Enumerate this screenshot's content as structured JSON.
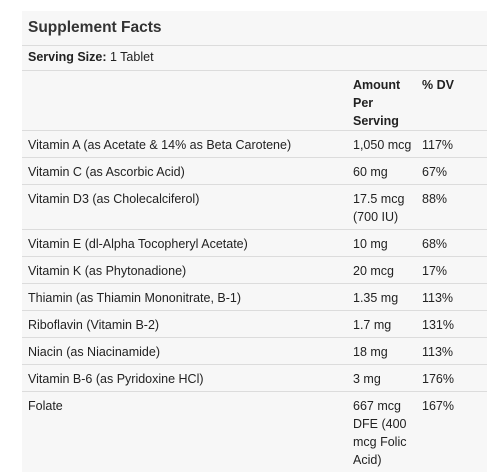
{
  "title": "Supplement Facts",
  "serving": {
    "label": "Serving Size:",
    "value": "1 Tablet"
  },
  "columns": {
    "amount": "Amount Per Serving",
    "dv": "% DV"
  },
  "rows": [
    {
      "name": "Vitamin A (as Acetate & 14% as Beta Carotene)",
      "amount": "1,050 mcg",
      "dv": "117%"
    },
    {
      "name": "Vitamin C (as Ascorbic Acid)",
      "amount": "60 mg",
      "dv": "67%"
    },
    {
      "name": "Vitamin D3 (as Cholecalciferol)",
      "amount": "17.5 mcg (700 IU)",
      "dv": "88%"
    },
    {
      "name": "Vitamin E (dl-Alpha Tocopheryl Acetate)",
      "amount": "10 mg",
      "dv": "68%"
    },
    {
      "name": "Vitamin K (as Phytonadione)",
      "amount": "20 mcg",
      "dv": "17%"
    },
    {
      "name": "Thiamin (as Thiamin Mononitrate, B-1)",
      "amount": "1.35 mg",
      "dv": "113%"
    },
    {
      "name": "Riboflavin (Vitamin B-2)",
      "amount": "1.7 mg",
      "dv": "131%"
    },
    {
      "name": "Niacin (as Niacinamide)",
      "amount": "18 mg",
      "dv": "113%"
    },
    {
      "name": "Vitamin B-6 (as Pyridoxine HCl)",
      "amount": "3 mg",
      "dv": "176%"
    },
    {
      "name": "Folate",
      "amount": "667 mcg DFE (400 mcg Folic Acid)",
      "dv": "167%"
    }
  ]
}
